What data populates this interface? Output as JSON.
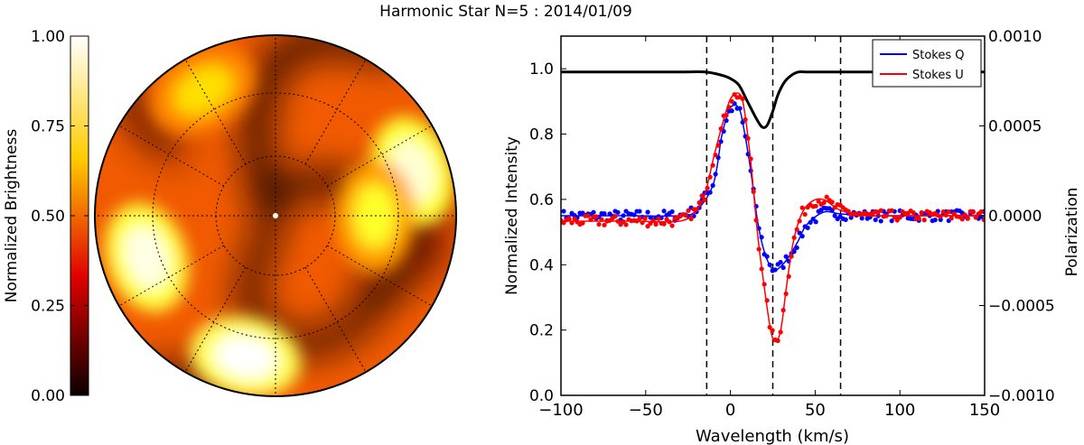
{
  "suptitle": "Harmonic Star N=5 : 2014/01/09",
  "chart_data": [
    {
      "type": "heatmap",
      "colorbar": {
        "label": "Normalized Brightness",
        "ticks": [
          0.0,
          0.25,
          0.5,
          0.75,
          1.0
        ],
        "tick_labels": [
          "0.00",
          "0.25",
          "0.50",
          "0.75",
          "1.00"
        ],
        "colormap": "hot"
      },
      "projection": "polar",
      "grid": "dotted",
      "bright_regions": [
        {
          "theta_deg": 18,
          "r": 0.8,
          "level": 0.95
        },
        {
          "theta_deg": 0,
          "r": 0.55,
          "level": 0.75
        },
        {
          "theta_deg": 198,
          "r": 0.75,
          "level": 0.97
        },
        {
          "theta_deg": 258,
          "r": 0.8,
          "level": 1.0
        },
        {
          "theta_deg": 120,
          "r": 0.8,
          "level": 0.7
        }
      ]
    },
    {
      "type": "line",
      "xlabel": "Wavelength (km/s)",
      "ylabel": "Normalized Intensity",
      "y2label": "Polarization",
      "xlim": [
        -100,
        150
      ],
      "ylim": [
        0.0,
        1.1
      ],
      "y2lim": [
        -0.001,
        0.001
      ],
      "xticks": [
        -100,
        -50,
        0,
        50,
        100,
        150
      ],
      "xtick_labels": [
        "−100",
        "−50",
        "0",
        "50",
        "100",
        "150"
      ],
      "yticks": [
        0.0,
        0.2,
        0.4,
        0.6,
        0.8,
        1.0
      ],
      "ytick_labels": [
        "0.0",
        "0.2",
        "0.4",
        "0.6",
        "0.8",
        "1.0"
      ],
      "y2ticks": [
        -0.001,
        -0.0005,
        0.0,
        0.0005,
        0.001
      ],
      "y2tick_labels": [
        "−0.0010",
        "−0.0005",
        "0.0000",
        "0.0005",
        "0.0010"
      ],
      "vlines": [
        -14,
        25,
        65
      ],
      "legend_position": "top-right",
      "intensity": {
        "x": [
          -100,
          -60,
          -30,
          -15,
          -5,
          0,
          5,
          10,
          15,
          18,
          20,
          22,
          25,
          28,
          32,
          36,
          40,
          45,
          50,
          55,
          60,
          80,
          100,
          150
        ],
        "y": [
          0.99,
          0.99,
          0.99,
          0.99,
          0.98,
          0.97,
          0.95,
          0.9,
          0.85,
          0.825,
          0.82,
          0.83,
          0.87,
          0.92,
          0.96,
          0.98,
          0.99,
          0.99,
          0.99,
          0.99,
          0.99,
          0.99,
          0.99,
          0.99
        ]
      },
      "series": [
        {
          "name": "Stokes Q",
          "color": "#0000ff",
          "x": [
            -100,
            -60,
            -30,
            -20,
            -10,
            -5,
            0,
            5,
            8,
            12,
            16,
            20,
            25,
            30,
            35,
            40,
            45,
            55,
            65,
            80,
            100,
            150
          ],
          "y": [
            0.0,
            0.0,
            0.0,
            3e-05,
            0.00018,
            0.00045,
            0.0006,
            0.0006,
            0.00048,
            0.00025,
            -3e-05,
            -0.0002,
            -0.0003,
            -0.00028,
            -0.00022,
            -0.00014,
            -5e-05,
            2e-05,
            1e-05,
            0.0,
            0.0,
            0.0
          ]
        },
        {
          "name": "Stokes U",
          "color": "#ff0000",
          "x": [
            -100,
            -60,
            -30,
            -20,
            -15,
            -10,
            -5,
            0,
            5,
            8,
            12,
            16,
            20,
            24,
            27,
            30,
            33,
            37,
            42,
            48,
            55,
            65,
            80,
            100,
            150
          ],
          "y": [
            -3e-05,
            -3e-05,
            -3e-05,
            3e-05,
            0.00012,
            0.00032,
            0.0005,
            0.00065,
            0.00068,
            0.0006,
            0.0003,
            -0.0001,
            -0.0004,
            -0.00065,
            -0.0007,
            -0.00062,
            -0.0004,
            -0.00015,
            1e-05,
            8e-05,
            9e-05,
            3e-05,
            0.0,
            0.0,
            0.0
          ]
        }
      ]
    }
  ]
}
